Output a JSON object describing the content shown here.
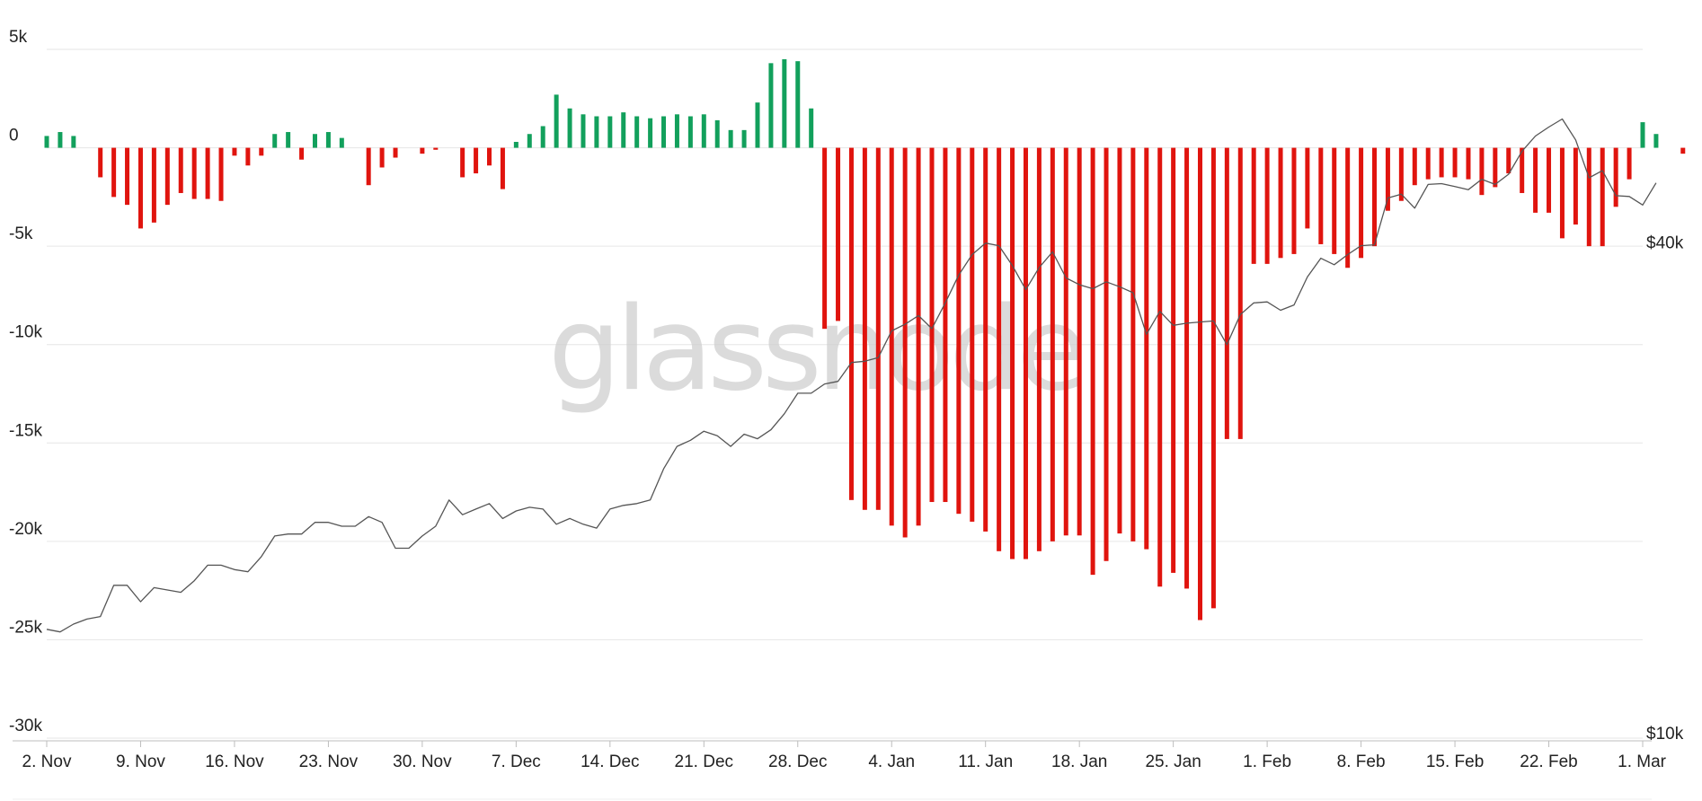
{
  "watermark": "glassnode",
  "chart_data": {
    "type": "bar",
    "grid": true,
    "x_start": "2020-11-02",
    "x_end": "2021-03-01",
    "x_tick_labels": [
      "2. Nov",
      "9. Nov",
      "16. Nov",
      "23. Nov",
      "30. Nov",
      "7. Dec",
      "14. Dec",
      "21. Dec",
      "28. Dec",
      "4. Jan",
      "11. Jan",
      "18. Jan",
      "25. Jan",
      "1. Feb",
      "8. Feb",
      "15. Feb",
      "22. Feb",
      "1. Mar"
    ],
    "y_left": {
      "ylim": [
        -30000,
        5000
      ],
      "tick_values": [
        5000,
        0,
        -5000,
        -10000,
        -15000,
        -20000,
        -25000,
        -30000
      ],
      "tick_labels": [
        "5k",
        "0",
        "-5k",
        "-10k",
        "-15k",
        "-20k",
        "-25k",
        "-30k"
      ]
    },
    "y_right": {
      "scale": "log",
      "ylim": [
        10000,
        70000
      ],
      "tick_values": [
        40000,
        10000
      ],
      "tick_labels": [
        "$40k",
        "$10k"
      ]
    },
    "colors": {
      "positive": "#12a05c",
      "negative": "#e0140e",
      "price": "#555555",
      "grid": "#e6e6e6"
    },
    "series": [
      {
        "type": "bar",
        "axis": "left",
        "values": [
          600,
          800,
          600,
          null,
          -1500,
          -2500,
          -2900,
          -4100,
          -3800,
          -2900,
          -2300,
          -2600,
          -2600,
          -2700,
          -400,
          -900,
          -400,
          700,
          800,
          -600,
          700,
          800,
          500,
          null,
          -1900,
          -1000,
          -500,
          null,
          -300,
          -100,
          null,
          -1500,
          -1300,
          -900,
          -2100,
          300,
          700,
          1100,
          2700,
          2000,
          1700,
          1600,
          1600,
          1800,
          1600,
          1500,
          1600,
          1700,
          1600,
          1700,
          1400,
          900,
          900,
          2300,
          4300,
          4500,
          4400,
          2000,
          -9200,
          -8800,
          -17900,
          -18400,
          -18400,
          -19200,
          -19800,
          -19200,
          -18000,
          -18000,
          -18600,
          -19000,
          -19500,
          -20500,
          -20900,
          -20900,
          -20500,
          -20000,
          -19700,
          -19700,
          -21700,
          -21000,
          -19600,
          -20000,
          -20400,
          -22300,
          -21600,
          -22400,
          -24000,
          -23400,
          -14800,
          -14800,
          -5900,
          -5900,
          -5600,
          -5400,
          -4100,
          -4900,
          -5400,
          -6100,
          -5600,
          -5000,
          -3200,
          -2700,
          -1900,
          -1600,
          -1500,
          -1500,
          -1600,
          -2400,
          -2000,
          -1300,
          -2300,
          -3300,
          -3300,
          -4600,
          -3900,
          -5000,
          -5000,
          -3000,
          -1600,
          1300,
          700,
          null,
          -300
        ]
      },
      {
        "type": "line",
        "name": "Price",
        "axis": "right",
        "values": [
          13600,
          13500,
          13800,
          14000,
          14100,
          15400,
          15400,
          14700,
          15300,
          15200,
          15100,
          15600,
          16300,
          16300,
          16100,
          16000,
          16700,
          17700,
          17800,
          17800,
          18400,
          18400,
          18200,
          18200,
          18700,
          18400,
          17100,
          17100,
          17700,
          18200,
          19600,
          18800,
          19100,
          19400,
          18600,
          19000,
          19200,
          19100,
          18300,
          18600,
          18300,
          18100,
          19100,
          19300,
          19400,
          19600,
          21400,
          22800,
          23200,
          23800,
          23500,
          22800,
          23600,
          23300,
          23900,
          25000,
          26500,
          26500,
          27200,
          27400,
          28900,
          29000,
          29300,
          31600,
          32200,
          33000,
          31800,
          34200,
          37000,
          39200,
          40500,
          40200,
          38000,
          35500,
          37800,
          39500,
          36700,
          36000,
          35600,
          36300,
          35800,
          35200,
          31300,
          33400,
          32100,
          32300,
          32400,
          32500,
          30400,
          33100,
          34200,
          34300,
          33500,
          34000,
          36800,
          38800,
          38100,
          39200,
          40200,
          40300,
          46000,
          46500,
          44700,
          47800,
          47900,
          47500,
          47100,
          48500,
          47800,
          49200,
          52500,
          54800,
          56200,
          57500,
          54200,
          48700,
          49700,
          46300,
          46200,
          45100,
          48000
        ]
      }
    ]
  }
}
